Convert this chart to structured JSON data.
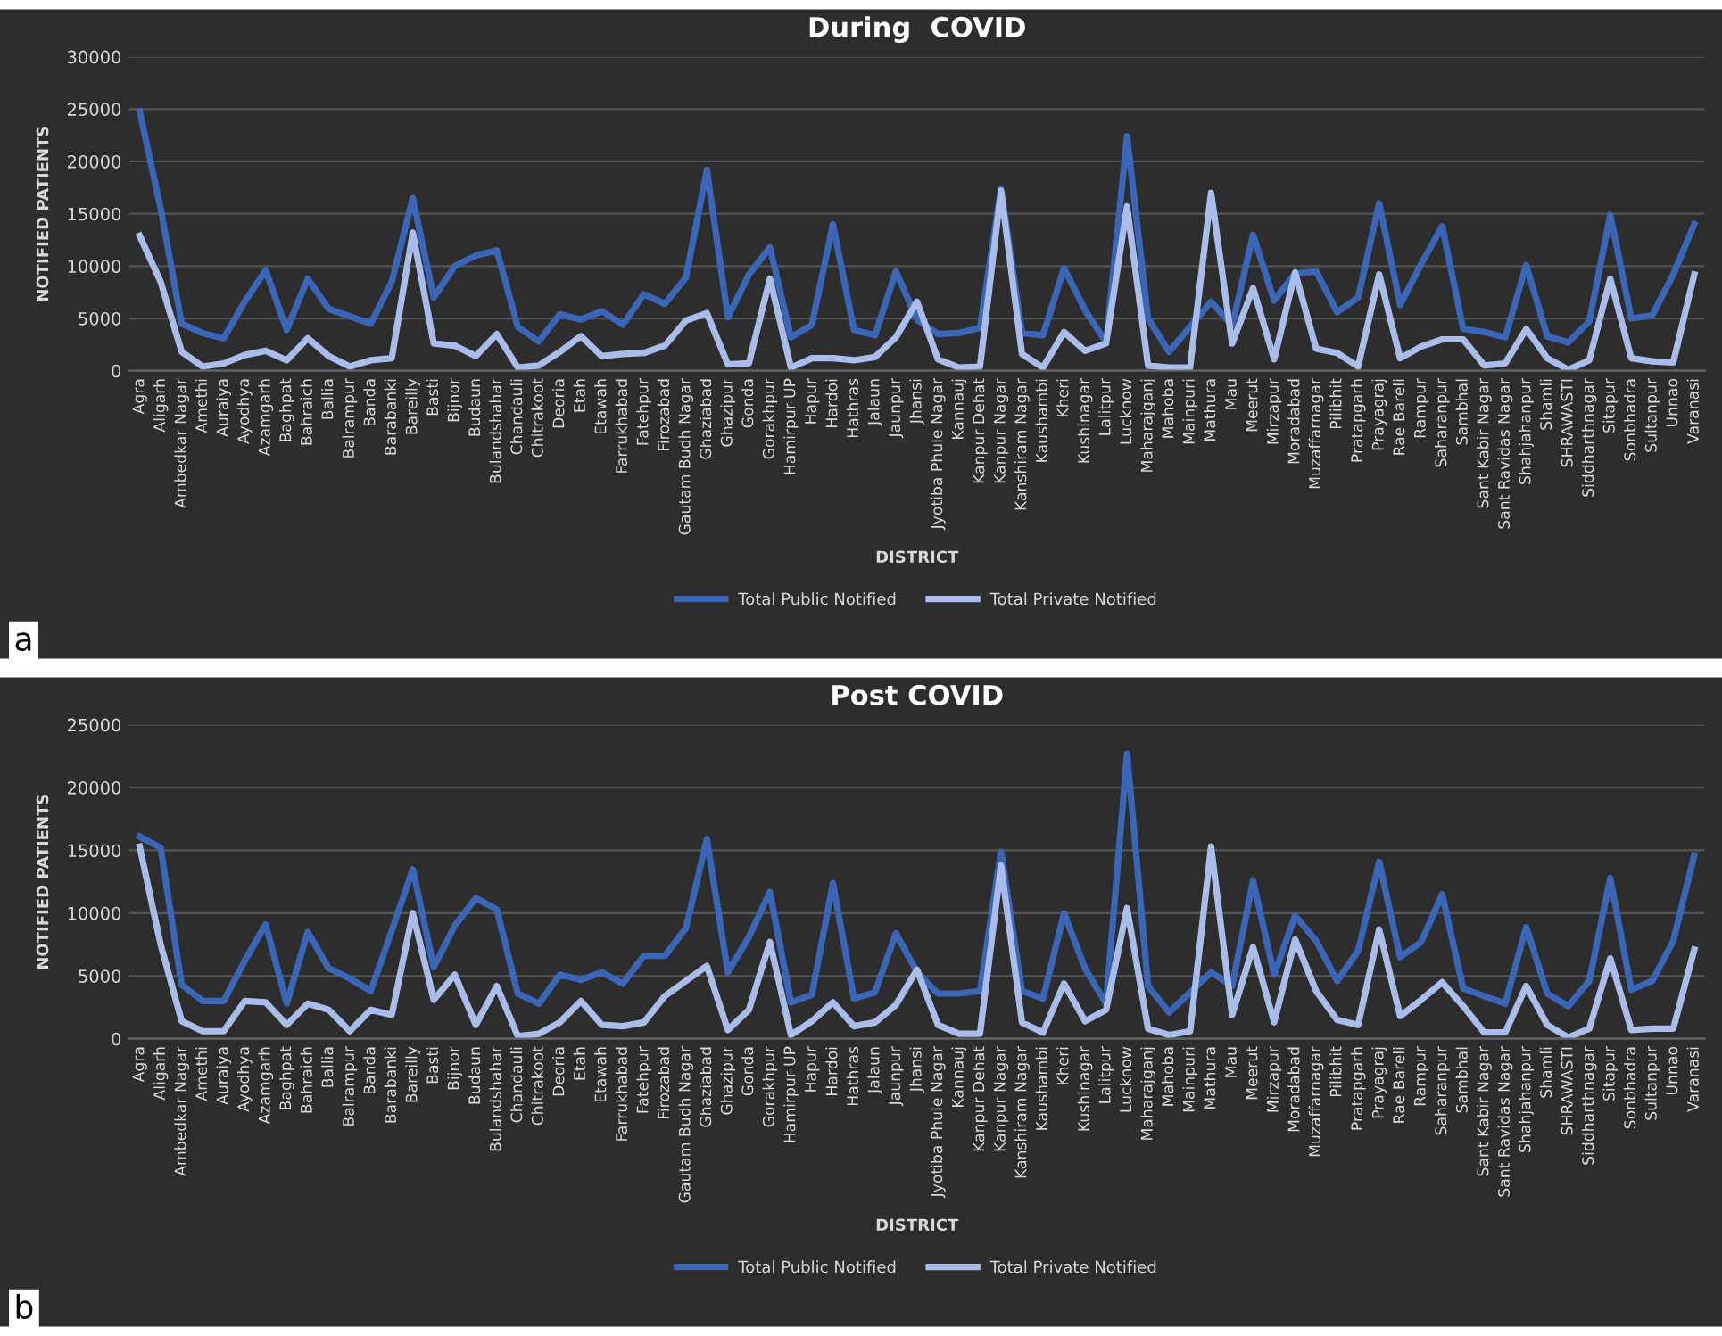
{
  "chart_data": [
    {
      "type": "line",
      "title": "During  COVID",
      "xlabel": "DISTRICT",
      "ylabel": "NOTIFIED PATIENTS",
      "annotations": [
        "a"
      ],
      "grid": "y",
      "legend": "bottom",
      "line_style": "solid",
      "marker": "none",
      "categories": [
        "Agra",
        "Aligarh",
        "Ambedkar Nagar",
        "Amethi",
        "Auraiya",
        "Ayodhya",
        "Azamgarh",
        "Baghpat",
        "Bahraich",
        "Ballia",
        "Balrampur",
        "Banda",
        "Barabanki",
        "Bareilly",
        "Basti",
        "Bijnor",
        "Budaun",
        "Bulandshahar",
        "Chandauli",
        "Chitrakoot",
        "Deoria",
        "Etah",
        "Etawah",
        "Farrukhabad",
        "Fatehpur",
        "Firozabad",
        "Gautam Budh Nagar",
        "Ghaziabad",
        "Ghazipur",
        "Gonda",
        "Gorakhpur",
        "Hamirpur-UP",
        "Hapur",
        "Hardoi",
        "Hathras",
        "Jalaun",
        "Jaunpur",
        "Jhansi",
        "Jyotiba Phule Nagar",
        "Kannauj",
        "Kanpur Dehat",
        "Kanpur Nagar",
        "Kanshiram Nagar",
        "Kaushambi",
        "Kheri",
        "Kushinagar",
        "Lalitpur",
        "Lucknow",
        "Maharajganj",
        "Mahoba",
        "Mainpuri",
        "Mathura",
        "Mau",
        "Meerut",
        "Mirzapur",
        "Moradabad",
        "Muzaffarnagar",
        "Pilibhit",
        "Pratapgarh",
        "Prayagraj",
        "Rae Bareli",
        "Rampur",
        "Saharanpur",
        "Sambhal",
        "Sant Kabir Nagar",
        "Sant Ravidas Nagar",
        "Shahjahanpur",
        "Shamli",
        "SHRAWASTI",
        "Siddharthnagar",
        "Sitapur",
        "Sonbhadra",
        "Sultanpur",
        "Unnao",
        "Varanasi"
      ],
      "ylim": [
        0,
        30000
      ],
      "yticks": [
        0,
        5000,
        10000,
        15000,
        20000,
        25000,
        30000
      ],
      "series": [
        {
          "name": "Total Public Notified",
          "color": "#3b66b8",
          "values": [
            24800,
            15500,
            4500,
            3600,
            3100,
            6600,
            9600,
            3900,
            8800,
            5900,
            5200,
            4500,
            8500,
            16500,
            7000,
            10000,
            11000,
            11500,
            4200,
            2800,
            5400,
            4900,
            5700,
            4400,
            7300,
            6400,
            8900,
            19200,
            5100,
            9200,
            11800,
            3200,
            4400,
            14000,
            3900,
            3400,
            9500,
            4900,
            3500,
            3600,
            4100,
            17400,
            3600,
            3400,
            9800,
            5800,
            2700,
            22400,
            5000,
            1800,
            4200,
            6600,
            4300,
            13000,
            6700,
            9300,
            9500,
            5600,
            7000,
            16000,
            6300,
            10200,
            13800,
            4000,
            3700,
            3200,
            10100,
            3300,
            2700,
            4700,
            14900,
            5000,
            5300,
            9200,
            14000
          ]
        },
        {
          "name": "Total Private Notified",
          "color": "#a9bcea",
          "values": [
            12900,
            8500,
            1800,
            400,
            700,
            1500,
            1900,
            1000,
            3100,
            1400,
            400,
            1000,
            1200,
            13200,
            2600,
            2400,
            1400,
            3500,
            300,
            500,
            1800,
            3300,
            1400,
            1600,
            1700,
            2400,
            4800,
            5500,
            600,
            700,
            8800,
            300,
            1200,
            1200,
            1000,
            1300,
            3200,
            6600,
            1100,
            300,
            400,
            17200,
            1600,
            300,
            3700,
            1900,
            2600,
            15700,
            500,
            300,
            300,
            17000,
            2600,
            7900,
            1100,
            9400,
            2100,
            1700,
            400,
            9200,
            1200,
            2300,
            3000,
            3000,
            500,
            700,
            4000,
            1200,
            100,
            1000,
            8800,
            1200,
            900,
            800,
            9200
          ]
        }
      ]
    },
    {
      "type": "line",
      "title": "Post COVID",
      "xlabel": "DISTRICT",
      "ylabel": "NOTIFIED PATIENTS",
      "annotations": [
        "b"
      ],
      "grid": "y",
      "legend": "bottom",
      "line_style": "solid",
      "marker": "none",
      "categories": [
        "Agra",
        "Aligarh",
        "Ambedkar Nagar",
        "Amethi",
        "Auraiya",
        "Ayodhya",
        "Azamgarh",
        "Baghpat",
        "Bahraich",
        "Ballia",
        "Balrampur",
        "Banda",
        "Barabanki",
        "Bareilly",
        "Basti",
        "Bijnor",
        "Budaun",
        "Bulandshahar",
        "Chandauli",
        "Chitrakoot",
        "Deoria",
        "Etah",
        "Etawah",
        "Farrukhabad",
        "Fatehpur",
        "Firozabad",
        "Gautam Budh Nagar",
        "Ghaziabad",
        "Ghazipur",
        "Gonda",
        "Gorakhpur",
        "Hamirpur-UP",
        "Hapur",
        "Hardoi",
        "Hathras",
        "Jalaun",
        "Jaunpur",
        "Jhansi",
        "Jyotiba Phule Nagar",
        "Kannauj",
        "Kanpur Dehat",
        "Kanpur Nagar",
        "Kanshiram Nagar",
        "Kaushambi",
        "Kheri",
        "Kushinagar",
        "Lalitpur",
        "Lucknow",
        "Maharajganj",
        "Mahoba",
        "Mainpuri",
        "Mathura",
        "Mau",
        "Meerut",
        "Mirzapur",
        "Moradabad",
        "Muzaffarnagar",
        "Pilibhit",
        "Pratapgarh",
        "Prayagraj",
        "Rae Bareli",
        "Rampur",
        "Saharanpur",
        "Sambhal",
        "Sant Kabir Nagar",
        "Sant Ravidas Nagar",
        "Shahjahanpur",
        "Shamli",
        "SHRAWASTI",
        "Siddharthnagar",
        "Sitapur",
        "Sonbhadra",
        "Sultanpur",
        "Unnao",
        "Varanasi"
      ],
      "ylim": [
        0,
        25000
      ],
      "yticks": [
        0,
        5000,
        10000,
        15000,
        20000,
        25000
      ],
      "series": [
        {
          "name": "Total Public Notified",
          "color": "#3b66b8",
          "values": [
            16100,
            15200,
            4300,
            3000,
            3000,
            6200,
            9100,
            2800,
            8500,
            5600,
            4800,
            3800,
            8600,
            13500,
            5700,
            9000,
            11200,
            10300,
            3600,
            2800,
            5100,
            4700,
            5300,
            4400,
            6600,
            6600,
            8800,
            15900,
            5300,
            8100,
            11700,
            2900,
            3500,
            12400,
            3200,
            3700,
            8400,
            5300,
            3600,
            3600,
            3800,
            14900,
            3800,
            3200,
            10000,
            5600,
            2800,
            22700,
            4200,
            2100,
            3700,
            5300,
            4200,
            12600,
            5100,
            9800,
            7800,
            4600,
            7000,
            14100,
            6500,
            7700,
            11500,
            4000,
            3400,
            2800,
            8900,
            3600,
            2600,
            4600,
            12800,
            3900,
            4600,
            7800,
            14600
          ]
        },
        {
          "name": "Total Private Notified",
          "color": "#a9bcea",
          "values": [
            15300,
            7500,
            1400,
            600,
            600,
            3000,
            2900,
            1100,
            2800,
            2300,
            600,
            2300,
            1900,
            10000,
            3100,
            5100,
            1100,
            4200,
            200,
            400,
            1300,
            3000,
            1100,
            1000,
            1300,
            3400,
            4600,
            5800,
            700,
            2300,
            7700,
            300,
            1400,
            2900,
            1000,
            1300,
            2700,
            5500,
            1100,
            400,
            400,
            13800,
            1300,
            500,
            4400,
            1400,
            2300,
            10400,
            800,
            300,
            600,
            15300,
            1900,
            7300,
            1300,
            7900,
            3800,
            1500,
            1100,
            8700,
            1800,
            3100,
            4500,
            2600,
            500,
            500,
            4200,
            1100,
            100,
            800,
            6400,
            700,
            800,
            800,
            7100
          ]
        }
      ]
    }
  ]
}
